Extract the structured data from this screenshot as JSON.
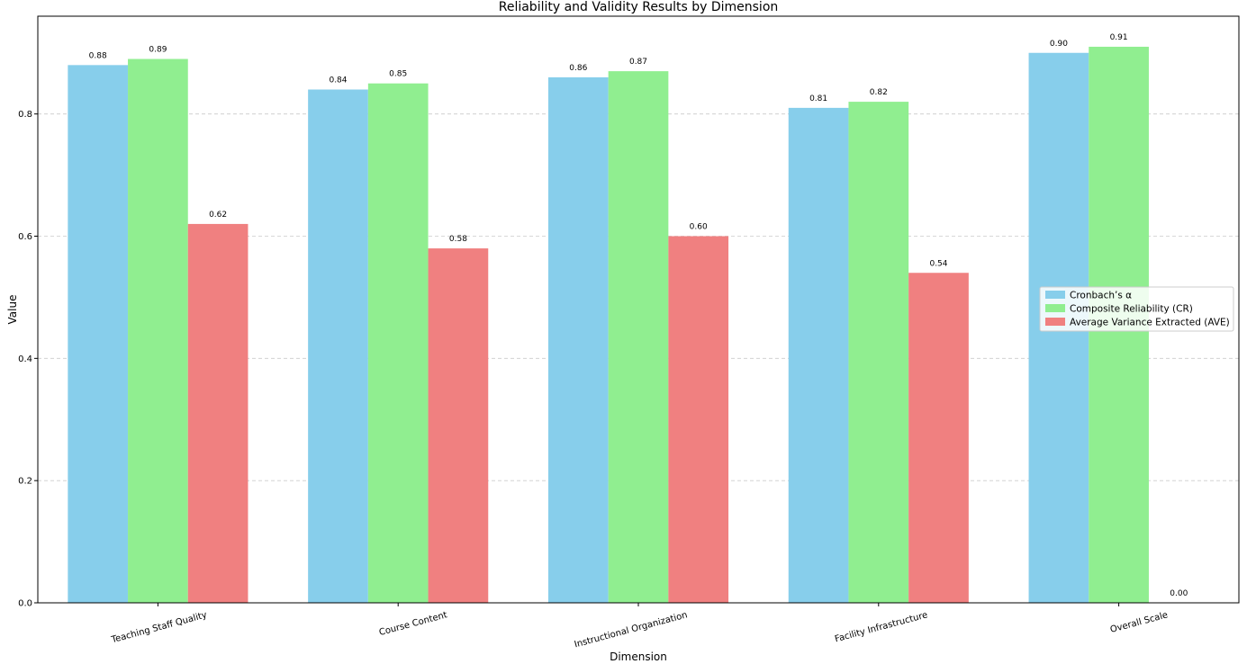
{
  "chart_data": {
    "type": "bar",
    "title": "Reliability and Validity Results by Dimension",
    "xlabel": "Dimension",
    "ylabel": "Value",
    "categories": [
      "Teaching Staff Quality",
      "Course Content",
      "Instructional Organization",
      "Facility Infrastructure",
      "Overall Scale"
    ],
    "series": [
      {
        "name": "Cronbach’s α",
        "color": "#87CEEB",
        "values": [
          0.88,
          0.84,
          0.86,
          0.81,
          0.9
        ]
      },
      {
        "name": "Composite Reliability (CR)",
        "color": "#90EE90",
        "values": [
          0.89,
          0.85,
          0.87,
          0.82,
          0.91
        ]
      },
      {
        "name": "Average Variance Extracted (AVE)",
        "color": "#F08080",
        "values": [
          0.62,
          0.58,
          0.6,
          0.54,
          0.0
        ]
      }
    ],
    "value_labels": [
      [
        "0.88",
        "0.84",
        "0.86",
        "0.81",
        "0.90"
      ],
      [
        "0.89",
        "0.85",
        "0.87",
        "0.82",
        "0.91"
      ],
      [
        "0.62",
        "0.58",
        "0.60",
        "0.54",
        "0.00"
      ]
    ],
    "ylim": [
      0,
      0.96
    ],
    "yticks": [
      0.0,
      0.2,
      0.4,
      0.6,
      0.8
    ],
    "ytick_labels": [
      "0.0",
      "0.2",
      "0.4",
      "0.6",
      "0.8"
    ],
    "grid": "y-dashed",
    "legend_position": "center-right"
  }
}
